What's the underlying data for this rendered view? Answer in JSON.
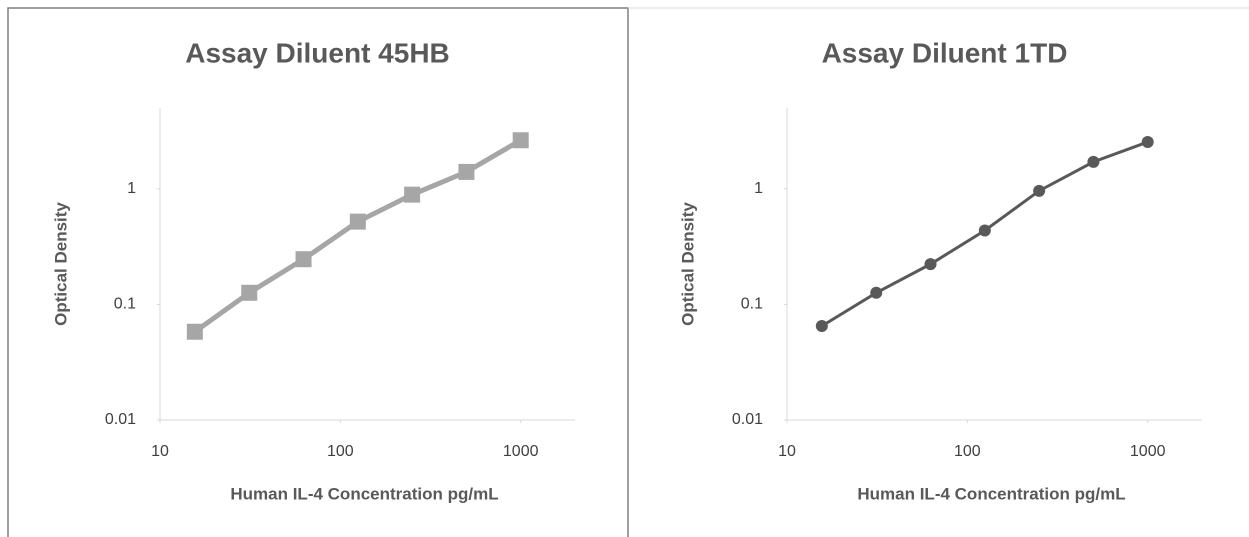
{
  "chart_data": [
    {
      "type": "line",
      "title": "Assay Diluent 45HB",
      "x_label": "Human IL-4 Concentration pg/mL",
      "y_label": "Optical Density",
      "x": [
        15.6,
        31.25,
        62.5,
        125,
        250,
        500,
        1000
      ],
      "series": [
        {
          "name": "Assay Diluent 45HB",
          "color": "#a6a6a6",
          "marker": "square",
          "values": [
            0.058,
            0.126,
            0.246,
            0.52,
            0.89,
            1.4,
            2.63
          ]
        }
      ],
      "xscale": "log",
      "yscale": "log",
      "xlim": [
        10,
        2000
      ],
      "ylim": [
        0.01,
        5
      ],
      "xticks": [
        10,
        100,
        1000
      ],
      "yticks": [
        0.01,
        0.1,
        1
      ],
      "grid": false
    },
    {
      "type": "line",
      "title": "Assay Diluent 1TD",
      "x_label": "Human IL-4 Concentration pg/mL",
      "y_label": "Optical Density",
      "x": [
        15.6,
        31.25,
        62.5,
        125,
        250,
        500,
        1000
      ],
      "series": [
        {
          "name": "Assay Diluent 1TD",
          "color": "#595959",
          "marker": "circle",
          "values": [
            0.065,
            0.126,
            0.223,
            0.436,
            0.96,
            1.71,
            2.54
          ]
        }
      ],
      "xscale": "log",
      "yscale": "log",
      "xlim": [
        10,
        2000
      ],
      "ylim": [
        0.01,
        5
      ],
      "xticks": [
        10,
        100,
        1000
      ],
      "yticks": [
        0.01,
        0.1,
        1
      ],
      "grid": false
    }
  ]
}
